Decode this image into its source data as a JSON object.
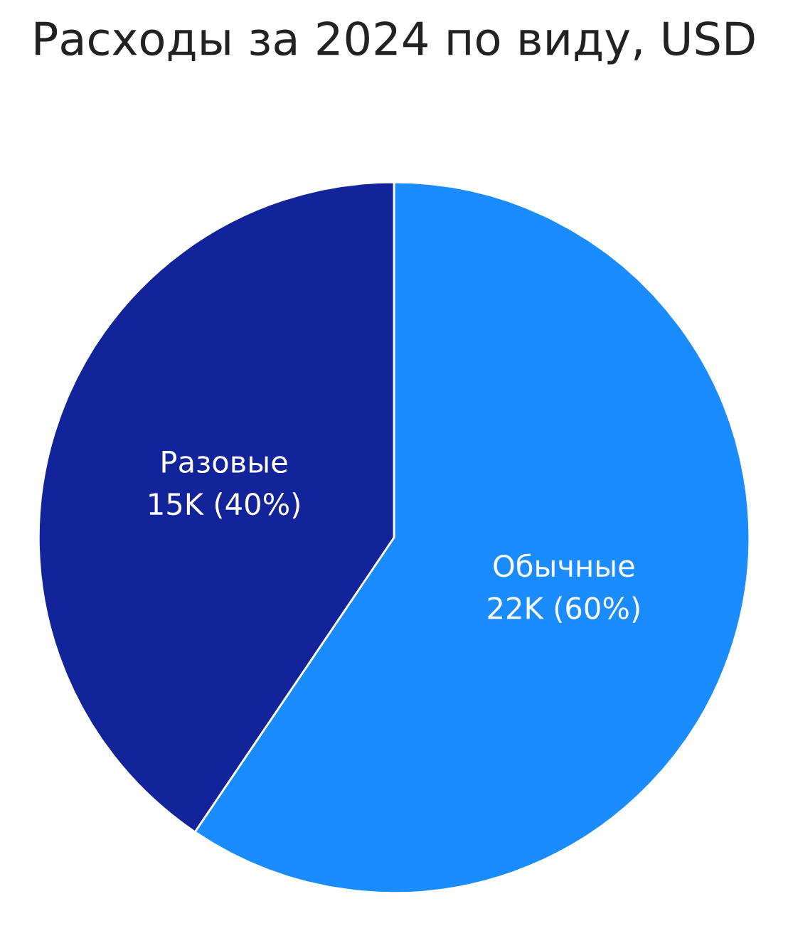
{
  "chart_data": {
    "type": "pie",
    "title": "Расходы за 2024 по виду, USD",
    "categories": [
      "Обычные",
      "Разовые"
    ],
    "values": [
      22000,
      15000
    ],
    "value_labels": [
      "22K (60%)",
      "15K (40%)"
    ],
    "colors": [
      "#1a8cff",
      "#13239a"
    ],
    "legend": false
  }
}
